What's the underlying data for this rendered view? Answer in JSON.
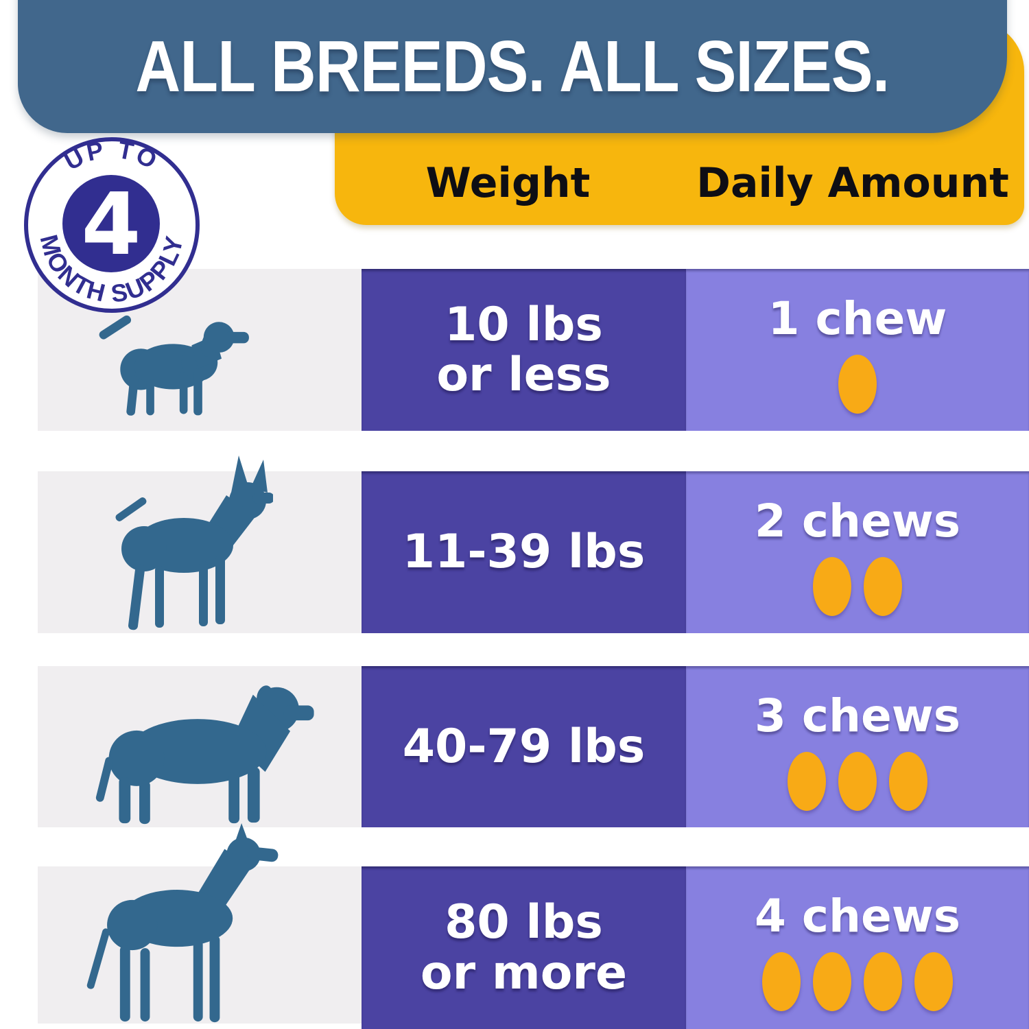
{
  "banner": {
    "title": "ALL BREEDS. ALL SIZES.",
    "bg_color": "#41678C",
    "text_color": "#FFFFFF"
  },
  "badge": {
    "top_text": "UP TO",
    "number": "4",
    "bottom_text": "MONTH SUPPLY",
    "color": "#312E90"
  },
  "table_header": {
    "weight_label": "Weight",
    "daily_label": "Daily Amount",
    "bg_color": "#F7B60D",
    "text_color": "#111111"
  },
  "rows": [
    {
      "dog_icon": "small-dog",
      "weight_lines": [
        "10 lbs",
        "or less"
      ],
      "daily": {
        "label": "1 chew",
        "count": 1
      }
    },
    {
      "dog_icon": "medium-dog",
      "weight_lines": [
        "11-39 lbs"
      ],
      "daily": {
        "label": "2 chews",
        "count": 2
      }
    },
    {
      "dog_icon": "large-dog",
      "weight_lines": [
        "40-79 lbs"
      ],
      "daily": {
        "label": "3 chews",
        "count": 3
      }
    },
    {
      "dog_icon": "giant-dog",
      "weight_lines": [
        "80 lbs",
        "or more"
      ],
      "daily": {
        "label": "4 chews",
        "count": 4
      }
    }
  ],
  "colors": {
    "weight_column": "#4B43A2",
    "daily_column": "#8780E0",
    "dog_row_bg": "#F0EEF0",
    "dog_silhouette": "#33688E",
    "chew_dot": "#F8AA16",
    "badge_navy": "#312E90",
    "banner_blue": "#41678C",
    "header_gold": "#F7B60D"
  }
}
